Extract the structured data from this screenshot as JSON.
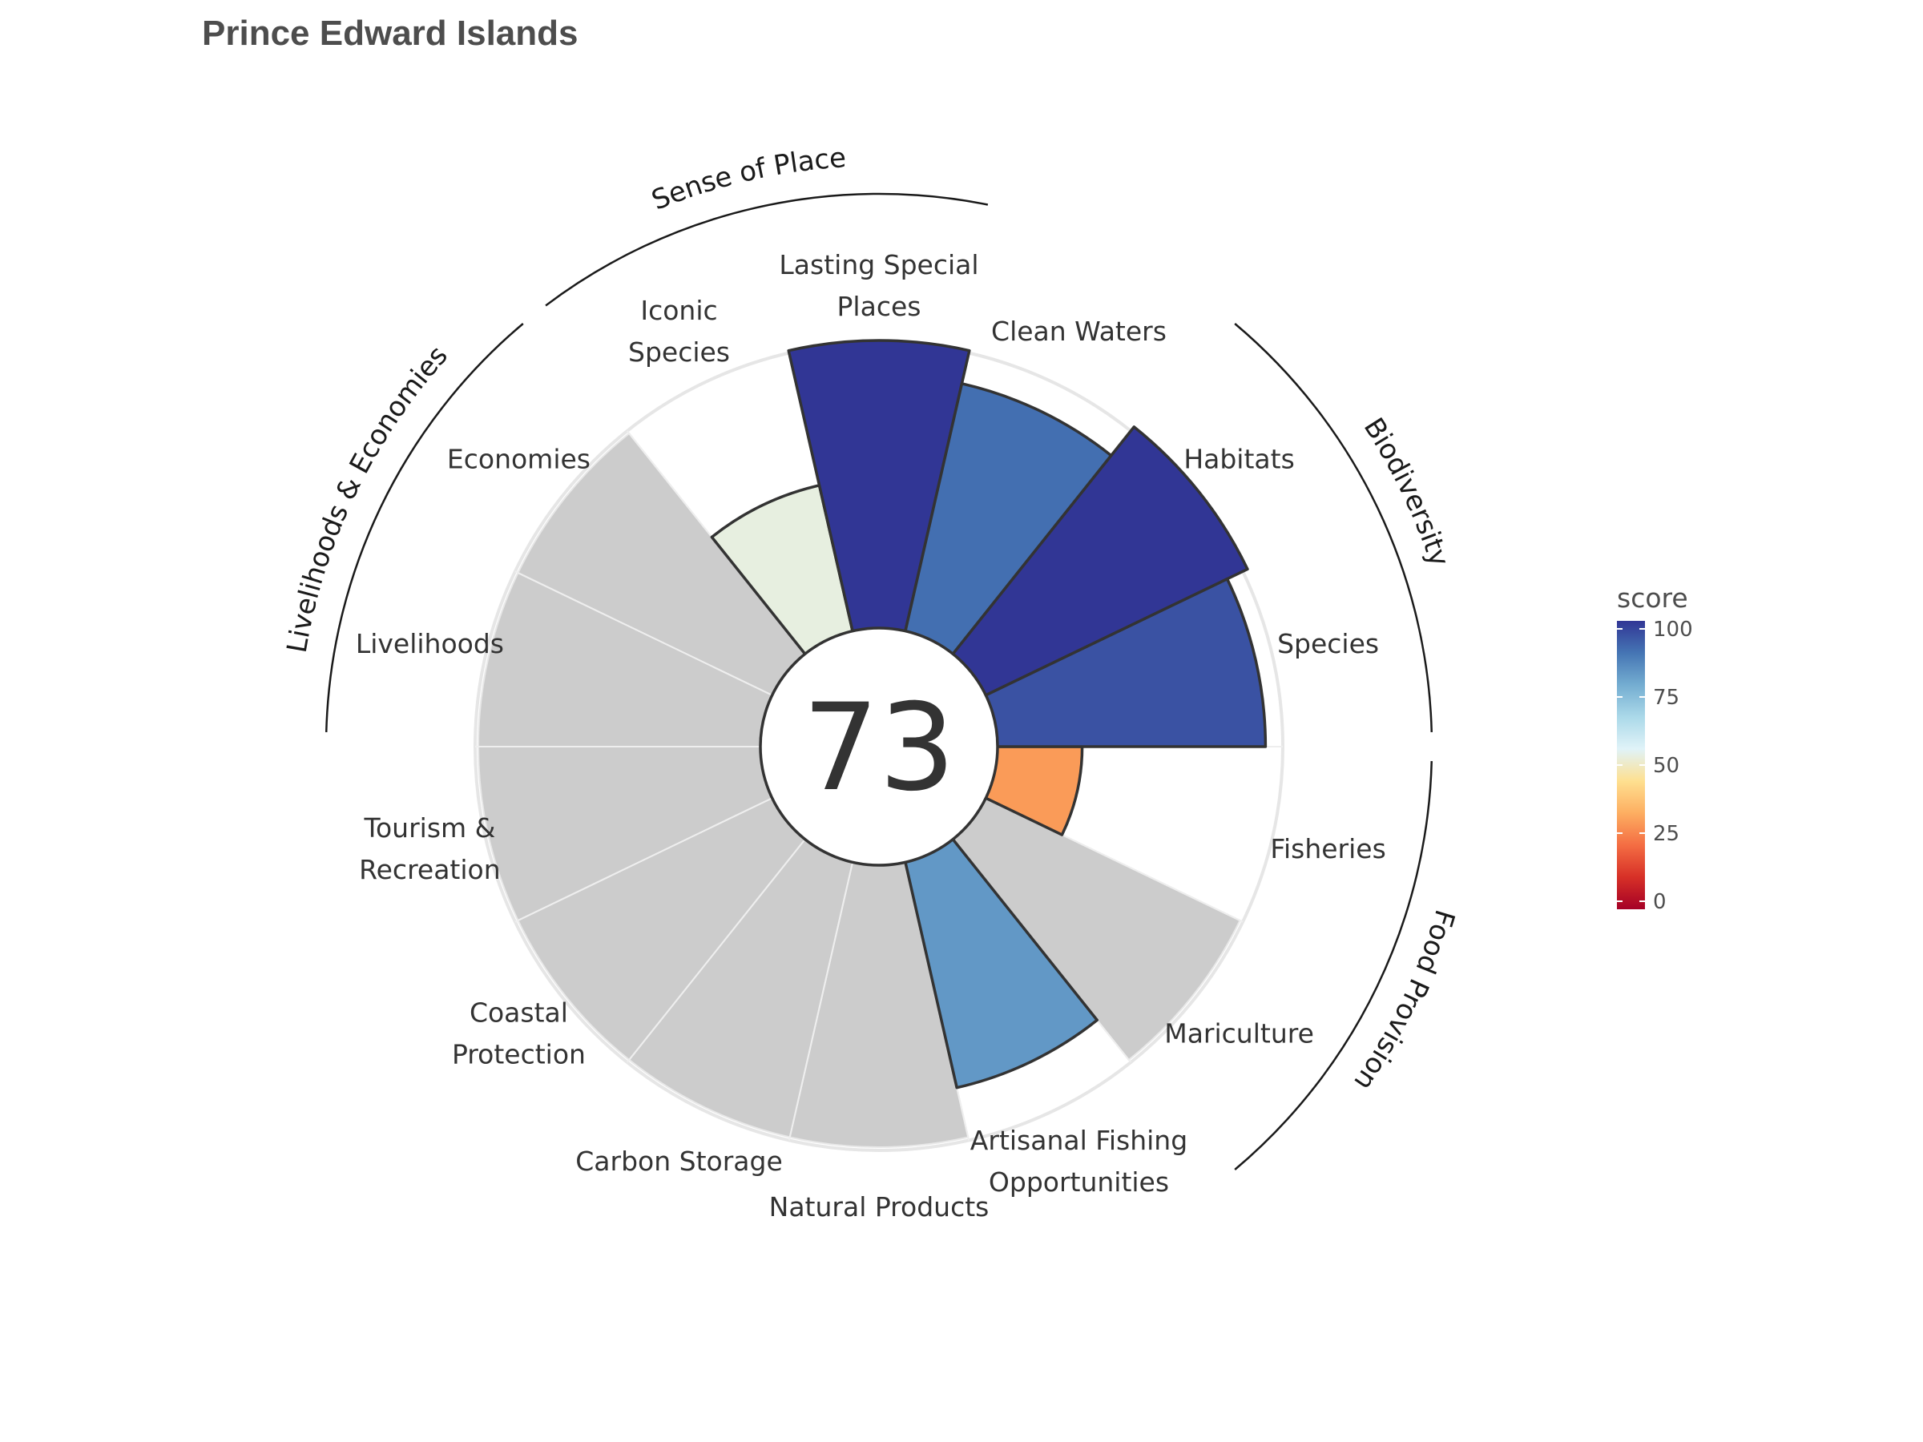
{
  "title": "Prince Edward Islands",
  "center_score": "73",
  "chart_data": {
    "type": "bar",
    "polar": true,
    "title": "Prince Edward Islands",
    "center_value": 73,
    "ylim": [
      0,
      100
    ],
    "categories": [
      "Fisheries",
      "Mariculture",
      "Artisanal Fishing Opportunities",
      "Natural Products",
      "Carbon Storage",
      "Coastal Protection",
      "Tourism & Recreation",
      "Livelihoods",
      "Economies",
      "Iconic Species",
      "Lasting Special Places",
      "Clean Waters",
      "Habitats",
      "Species"
    ],
    "label_lines": [
      [
        "Fisheries"
      ],
      [
        "Mariculture"
      ],
      [
        "Artisanal Fishing",
        "Opportunities"
      ],
      [
        "Natural Products"
      ],
      [
        "Carbon Storage"
      ],
      [
        "Coastal",
        "Protection"
      ],
      [
        "Tourism &",
        "Recreation"
      ],
      [
        "Livelihoods"
      ],
      [
        "Economies"
      ],
      [
        "Iconic",
        "Species"
      ],
      [
        "Lasting Special",
        "Places"
      ],
      [
        "Clean Waters"
      ],
      [
        "Habitats"
      ],
      [
        "Species"
      ]
    ],
    "values": [
      30,
      null,
      82,
      null,
      null,
      null,
      null,
      null,
      null,
      53,
      102,
      90,
      103,
      95
    ],
    "widths": [
      1,
      1,
      1,
      1,
      1,
      1,
      1,
      1,
      1,
      1,
      1,
      1,
      1,
      1
    ],
    "groups": [
      {
        "name": "Food Provision",
        "start": 0,
        "end": 2
      },
      {
        "name": "Biodiversity",
        "start": 12,
        "end": 14
      },
      {
        "name": "Sense of Place",
        "start": 9,
        "end": 11
      },
      {
        "name": "Livelihoods & Economies",
        "start": 7,
        "end": 9
      }
    ],
    "na_color": "#cccccc",
    "colorbar": {
      "title": "score",
      "range": [
        0,
        100
      ],
      "ticks": [
        "0",
        "25",
        "50",
        "75",
        "100"
      ],
      "colors": [
        "#a50026",
        "#d73027",
        "#f46d43",
        "#fdae61",
        "#fee090",
        "#e0f3f8",
        "#abd9e9",
        "#74add1",
        "#4575b4",
        "#313695"
      ]
    }
  }
}
